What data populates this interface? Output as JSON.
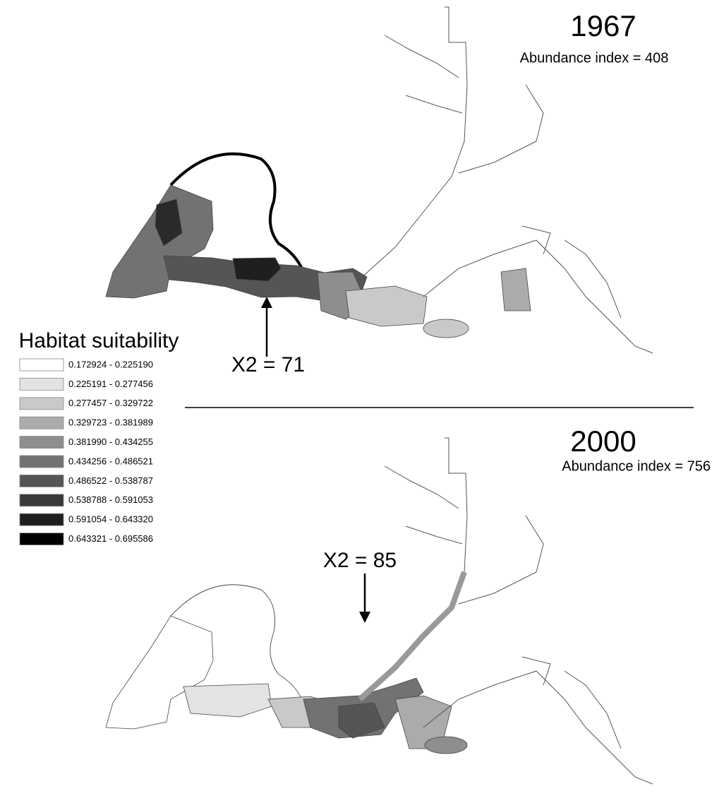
{
  "panels": [
    {
      "year": "1967",
      "abundance": "Abundance index = 408",
      "x2": "X2 = 71"
    },
    {
      "year": "2000",
      "abundance": "Abundance index = 756",
      "x2": "X2 = 85"
    }
  ],
  "legend": {
    "title": "Habitat suitability",
    "items": [
      {
        "label": "0.172924 - 0.225190",
        "color": "#ffffff"
      },
      {
        "label": "0.225191 - 0.277456",
        "color": "#e3e3e3"
      },
      {
        "label": "0.277457 - 0.329722",
        "color": "#c9c9c9"
      },
      {
        "label": "0.329723 - 0.381989",
        "color": "#ababab"
      },
      {
        "label": "0.381990 - 0.434255",
        "color": "#8e8e8e"
      },
      {
        "label": "0.434256 - 0.486521",
        "color": "#727272"
      },
      {
        "label": "0.486522 - 0.538787",
        "color": "#555555"
      },
      {
        "label": "0.538788 - 0.591053",
        "color": "#3a3a3a"
      },
      {
        "label": "0.591054 - 0.643320",
        "color": "#1f1f1f"
      },
      {
        "label": "0.643321 - 0.695586",
        "color": "#000000"
      }
    ]
  }
}
